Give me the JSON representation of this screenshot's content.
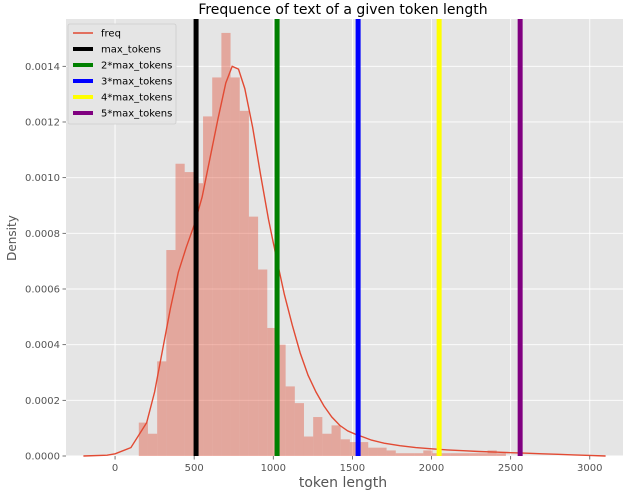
{
  "chart_data": {
    "type": "histogram_kde",
    "title": "Frequence of text of a given token length",
    "xlabel": "token length",
    "ylabel": "Density",
    "xlim": [
      -310,
      3210
    ],
    "ylim": [
      0,
      0.00157
    ],
    "xticks": [
      0,
      500,
      1000,
      1500,
      2000,
      2500,
      3000
    ],
    "xtick_labels": [
      "0",
      "500",
      "1000",
      "1500",
      "2000",
      "2500",
      "3000"
    ],
    "yticks": [
      0,
      0.0002,
      0.0004,
      0.0006,
      0.0008,
      0.001,
      0.0012,
      0.0014
    ],
    "ytick_labels": [
      "0.0000",
      "0.0002",
      "0.0004",
      "0.0006",
      "0.0008",
      "0.0010",
      "0.0012",
      "0.0014"
    ],
    "grid": true,
    "legend_position": "top-left",
    "histogram": {
      "bin_start": 150,
      "bin_width": 58,
      "color": "#e24a33",
      "values": [
        0.00012,
        8e-05,
        0.00034,
        0.00074,
        0.00105,
        0.00102,
        0.00098,
        0.00122,
        0.00136,
        0.00152,
        0.00136,
        0.00124,
        0.00086,
        0.00067,
        0.00046,
        0.0004,
        0.00025,
        0.00019,
        7e-05,
        0.00014,
        8e-05,
        0.00011,
        6e-05,
        5e-05,
        5e-05,
        3e-05,
        3e-05,
        2e-05,
        1e-05,
        1e-05,
        1e-05,
        2e-05,
        1e-05,
        1e-05,
        1e-05,
        1e-05,
        1e-05,
        1e-05,
        2e-05,
        1e-05
      ]
    },
    "kde": {
      "name": "freq",
      "color": "#e24a33",
      "points": [
        [
          -200,
          0
        ],
        [
          -50,
          3e-06
        ],
        [
          0,
          8e-06
        ],
        [
          100,
          3e-05
        ],
        [
          200,
          0.00012
        ],
        [
          250,
          0.00023
        ],
        [
          300,
          0.00038
        ],
        [
          350,
          0.00053
        ],
        [
          400,
          0.00066
        ],
        [
          450,
          0.00075
        ],
        [
          500,
          0.00083
        ],
        [
          550,
          0.00093
        ],
        [
          600,
          0.00107
        ],
        [
          650,
          0.00121
        ],
        [
          700,
          0.00134
        ],
        [
          740,
          0.0014
        ],
        [
          780,
          0.00139
        ],
        [
          820,
          0.00132
        ],
        [
          870,
          0.00118
        ],
        [
          920,
          0.00101
        ],
        [
          970,
          0.00085
        ],
        [
          1020,
          0.00071
        ],
        [
          1070,
          0.00058
        ],
        [
          1120,
          0.00047
        ],
        [
          1170,
          0.00037
        ],
        [
          1220,
          0.00029
        ],
        [
          1270,
          0.00023
        ],
        [
          1320,
          0.00018
        ],
        [
          1370,
          0.00014
        ],
        [
          1420,
          0.00011
        ],
        [
          1470,
          9e-05
        ],
        [
          1520,
          7.8e-05
        ],
        [
          1570,
          6.8e-05
        ],
        [
          1620,
          5.7e-05
        ],
        [
          1700,
          4.6e-05
        ],
        [
          1800,
          3.7e-05
        ],
        [
          1900,
          3e-05
        ],
        [
          2000,
          2.6e-05
        ],
        [
          2100,
          2.2e-05
        ],
        [
          2200,
          1.9e-05
        ],
        [
          2300,
          1.6e-05
        ],
        [
          2400,
          1.4e-05
        ],
        [
          2500,
          1.2e-05
        ],
        [
          2600,
          1e-05
        ],
        [
          2700,
          8e-06
        ],
        [
          2800,
          6e-06
        ],
        [
          2900,
          4e-06
        ],
        [
          3000,
          2e-06
        ],
        [
          3100,
          0
        ]
      ]
    },
    "vlines": [
      {
        "name": "max_tokens",
        "x": 512,
        "color": "#000000"
      },
      {
        "name": "2*max_tokens",
        "x": 1024,
        "color": "#008000"
      },
      {
        "name": "3*max_tokens",
        "x": 1536,
        "color": "#0000ff"
      },
      {
        "name": "4*max_tokens",
        "x": 2048,
        "color": "#ffff00"
      },
      {
        "name": "5*max_tokens",
        "x": 2560,
        "color": "#800080"
      }
    ]
  }
}
